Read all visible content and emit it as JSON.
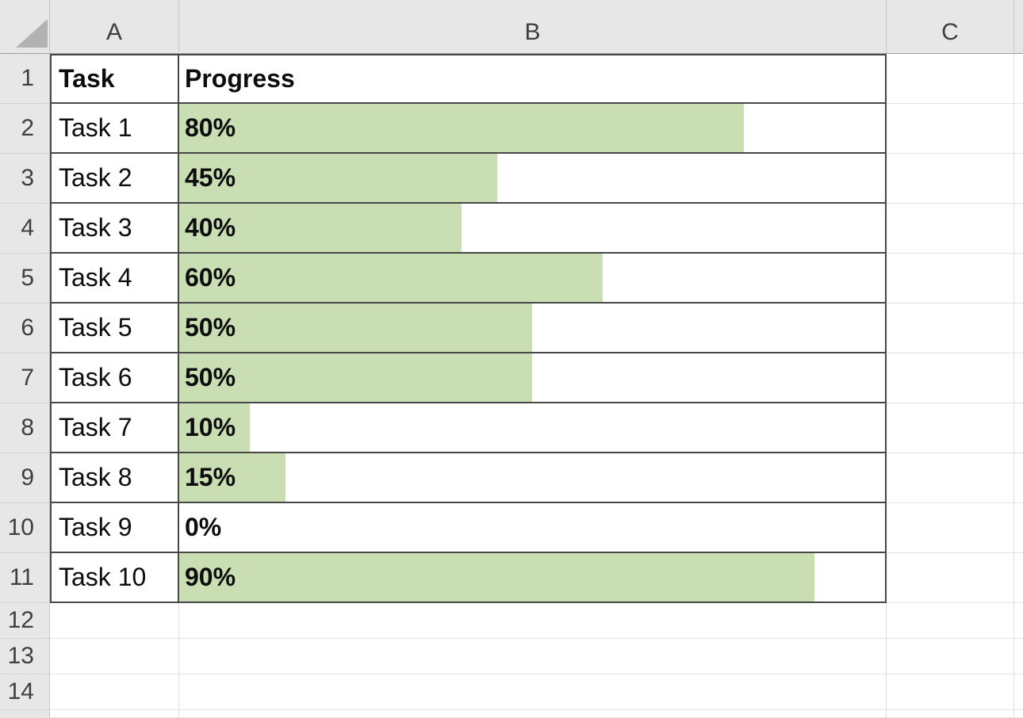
{
  "colors": {
    "bar_fill": "#cadeb4",
    "header_bg": "#e7e7e7",
    "table_border": "#474747",
    "gridline": "#dcdcdc"
  },
  "grid": {
    "select_all": "select-all",
    "column_headers": [
      "A",
      "B",
      "C"
    ],
    "rows": [
      {
        "num": "1",
        "a": "Task",
        "b": "Progress",
        "header": true
      },
      {
        "num": "2",
        "a": "Task 1",
        "b": "80%",
        "pct": 80
      },
      {
        "num": "3",
        "a": "Task 2",
        "b": "45%",
        "pct": 45
      },
      {
        "num": "4",
        "a": "Task 3",
        "b": "40%",
        "pct": 40
      },
      {
        "num": "5",
        "a": "Task 4",
        "b": "60%",
        "pct": 60
      },
      {
        "num": "6",
        "a": "Task 5",
        "b": "50%",
        "pct": 50
      },
      {
        "num": "7",
        "a": "Task 6",
        "b": "50%",
        "pct": 50
      },
      {
        "num": "8",
        "a": "Task 7",
        "b": "10%",
        "pct": 10
      },
      {
        "num": "9",
        "a": "Task 8",
        "b": "15%",
        "pct": 15
      },
      {
        "num": "10",
        "a": "Task 9",
        "b": "0%",
        "pct": 0
      },
      {
        "num": "11",
        "a": "Task 10",
        "b": "90%",
        "pct": 90
      },
      {
        "num": "12"
      },
      {
        "num": "13"
      },
      {
        "num": "14"
      }
    ]
  }
}
